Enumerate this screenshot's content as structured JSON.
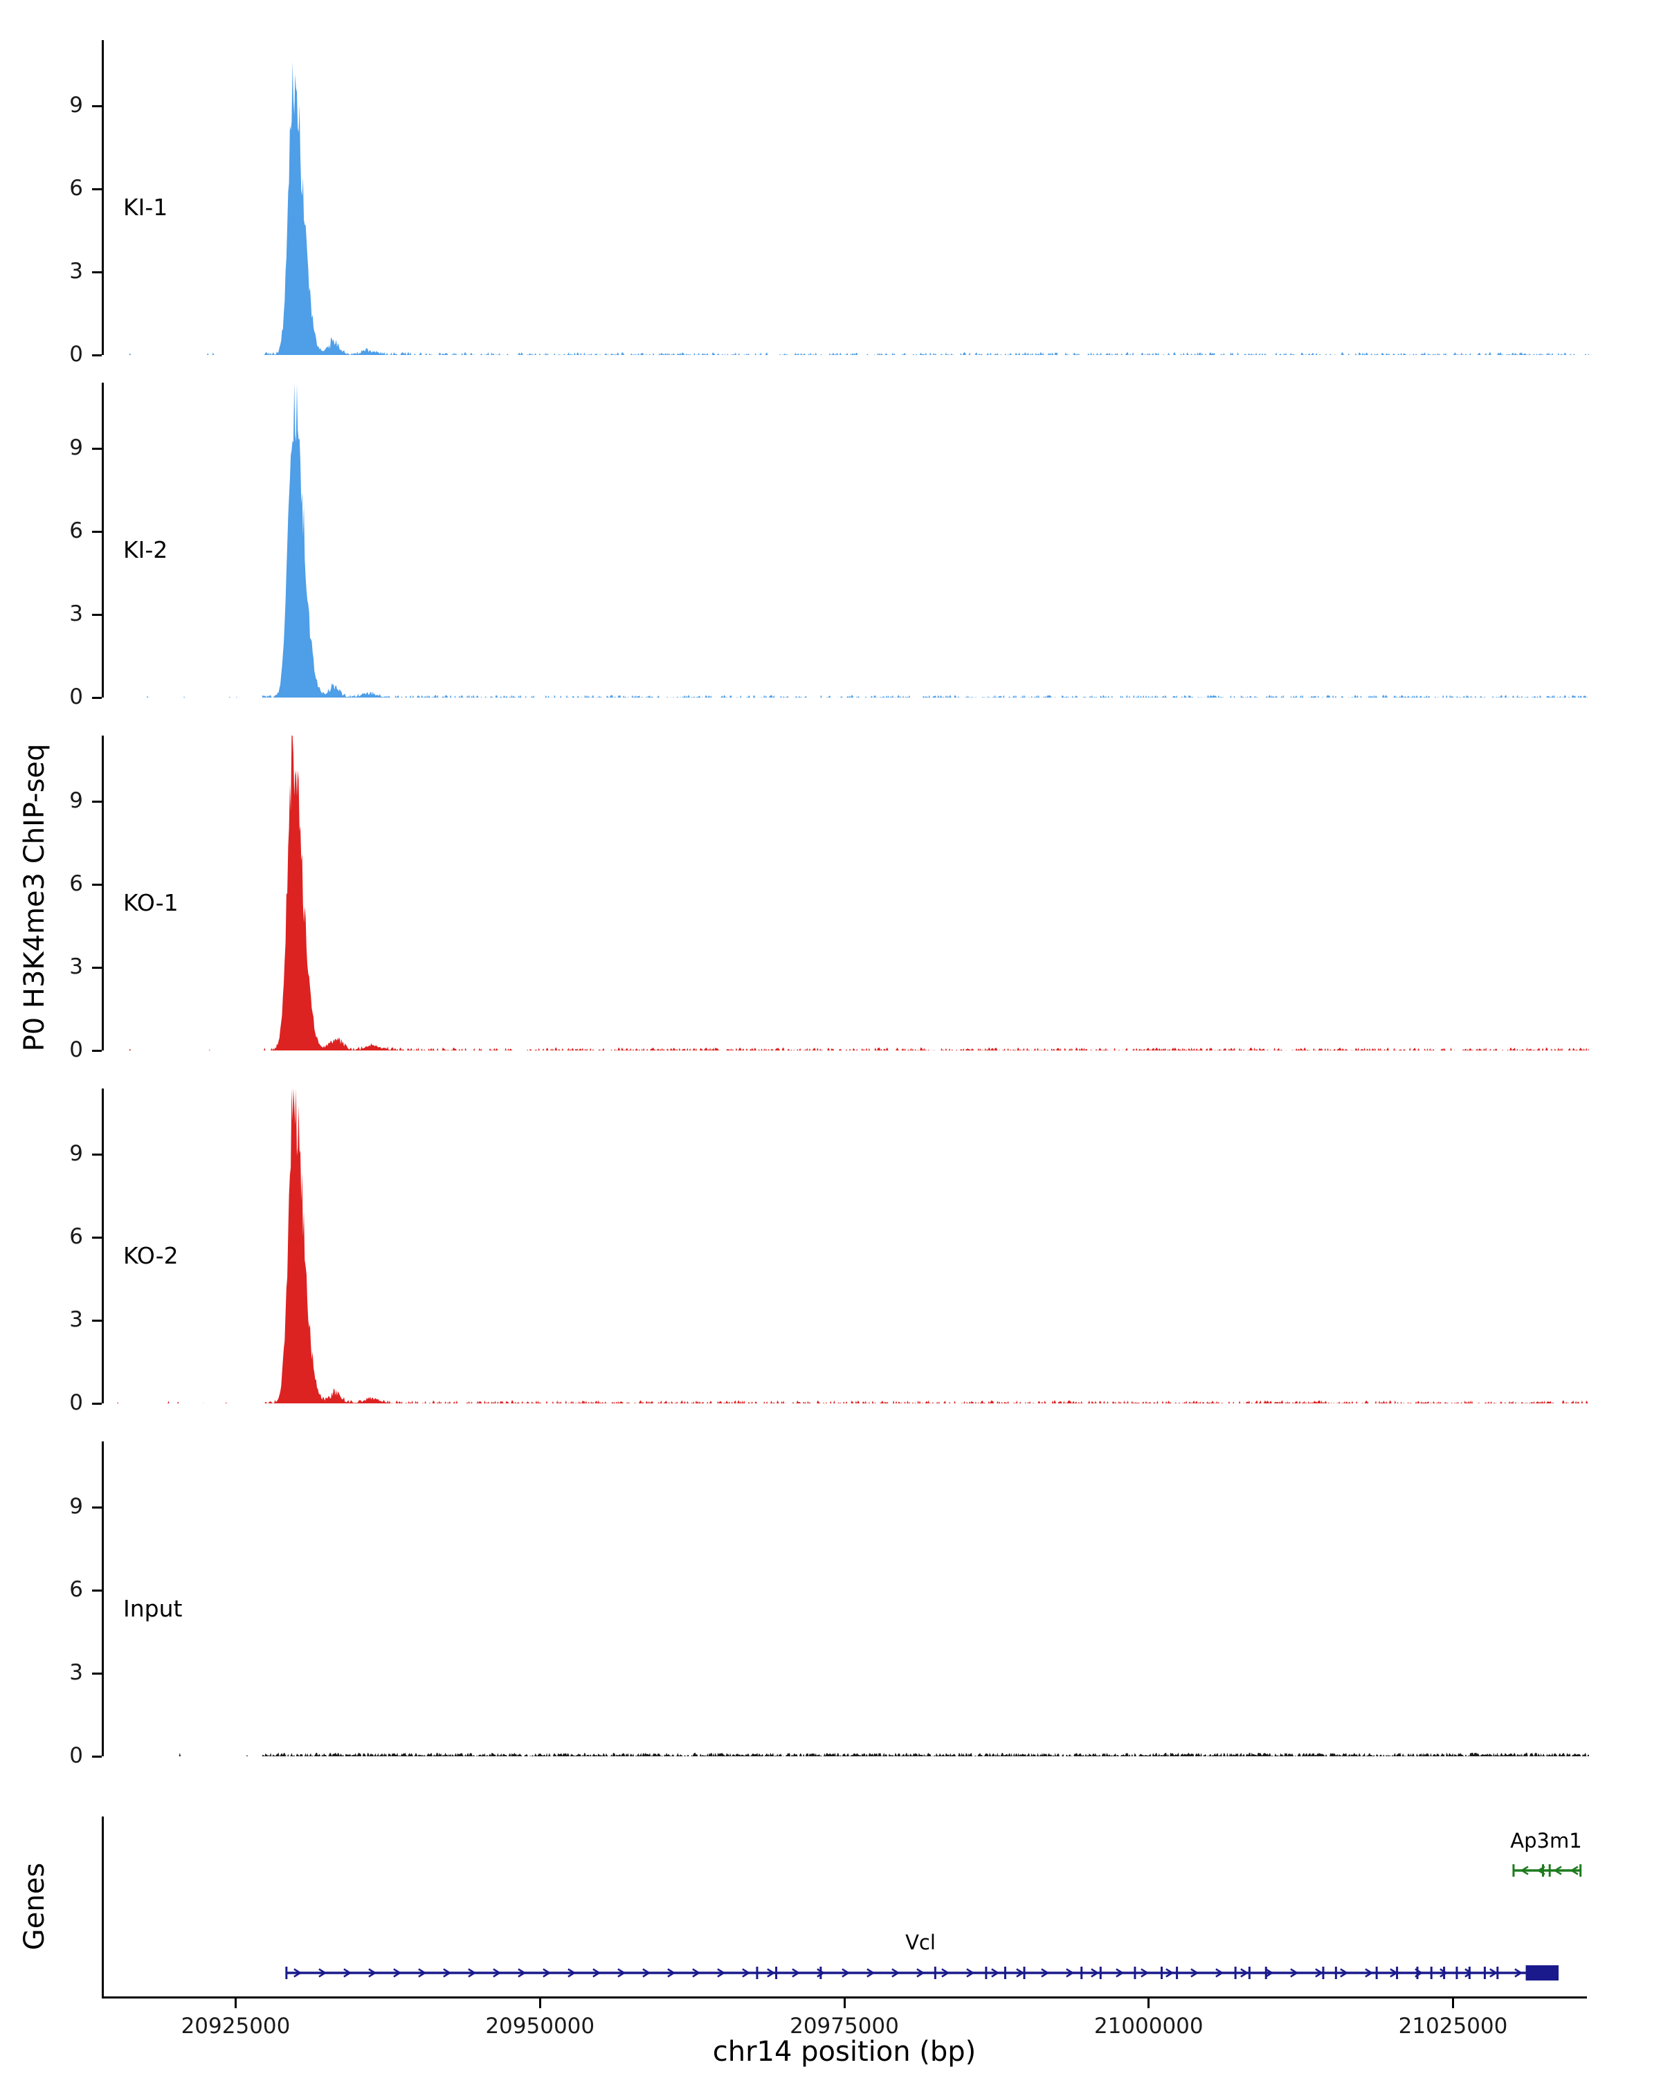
{
  "chart_data": {
    "type": "area",
    "title": "",
    "ylabel": "P0 H3K4me3 ChIP-seq",
    "xlabel": "chr14 position (bp)",
    "genes_label": "Genes",
    "x_min": 20914000,
    "x_max": 21036000,
    "x_ticks": [
      20925000,
      20950000,
      20975000,
      21000000,
      21025000
    ],
    "y_ticks": [
      0,
      3,
      6,
      9
    ],
    "y_max": 11.375,
    "noise_start": 20927000,
    "grid": false,
    "legend": "none",
    "tracks": [
      {
        "name": "KI-1",
        "color": "#4E9EE8",
        "noise_density": 0.38,
        "noise_amp": 0.1,
        "peak": {
          "apex": 20929600,
          "height": 9.6,
          "sigma_left": 420,
          "sigma_right": 760,
          "bumps": [
            {
              "x": 20932900,
              "h": 0.45,
              "s": 450
            },
            {
              "x": 20935800,
              "h": 0.15,
              "s": 600
            }
          ]
        }
      },
      {
        "name": "KI-2",
        "color": "#4E9EE8",
        "noise_density": 0.4,
        "noise_amp": 0.1,
        "peak": {
          "apex": 20929600,
          "height": 10.7,
          "sigma_left": 440,
          "sigma_right": 780,
          "bumps": [
            {
              "x": 20932900,
              "h": 0.4,
              "s": 450
            },
            {
              "x": 20935800,
              "h": 0.14,
              "s": 600
            }
          ]
        }
      },
      {
        "name": "KO-1",
        "color": "#DD2222",
        "noise_density": 0.45,
        "noise_amp": 0.11,
        "peak": {
          "apex": 20929500,
          "height": 10.4,
          "sigma_left": 430,
          "sigma_right": 800,
          "bumps": [
            {
              "x": 20933100,
              "h": 0.42,
              "s": 470
            },
            {
              "x": 20936200,
              "h": 0.16,
              "s": 650
            }
          ]
        }
      },
      {
        "name": "KO-2",
        "color": "#DD2222",
        "noise_density": 0.45,
        "noise_amp": 0.11,
        "peak": {
          "apex": 20929600,
          "height": 10.8,
          "sigma_left": 440,
          "sigma_right": 790,
          "bumps": [
            {
              "x": 20933000,
              "h": 0.38,
              "s": 460
            },
            {
              "x": 20936000,
              "h": 0.15,
              "s": 650
            }
          ]
        }
      },
      {
        "name": "Input",
        "color": "#1a1a1a",
        "noise_density": 0.85,
        "noise_amp": 0.13,
        "peak": null
      }
    ],
    "genes": [
      {
        "name": "Vcl",
        "color": "#1A1A8C",
        "strand": "+",
        "start": 20929000,
        "end": 21030800,
        "utr_box": {
          "start": 21030800,
          "end": 21033500
        },
        "exons": [
          0.0,
          0.37,
          0.385,
          0.42,
          0.51,
          0.55,
          0.565,
          0.58,
          0.625,
          0.64,
          0.667,
          0.688,
          0.7,
          0.746,
          0.757,
          0.77,
          0.815,
          0.825,
          0.857,
          0.873,
          0.889,
          0.9,
          0.91,
          0.92,
          0.93,
          0.942,
          0.952
        ]
      },
      {
        "name": "Ap3m1",
        "color": "#1E7B1E",
        "strand": "-",
        "start": 21029800,
        "end": 21035300,
        "utr_box": null,
        "exons": [
          0.0,
          0.44,
          0.54,
          1.0
        ]
      }
    ]
  }
}
